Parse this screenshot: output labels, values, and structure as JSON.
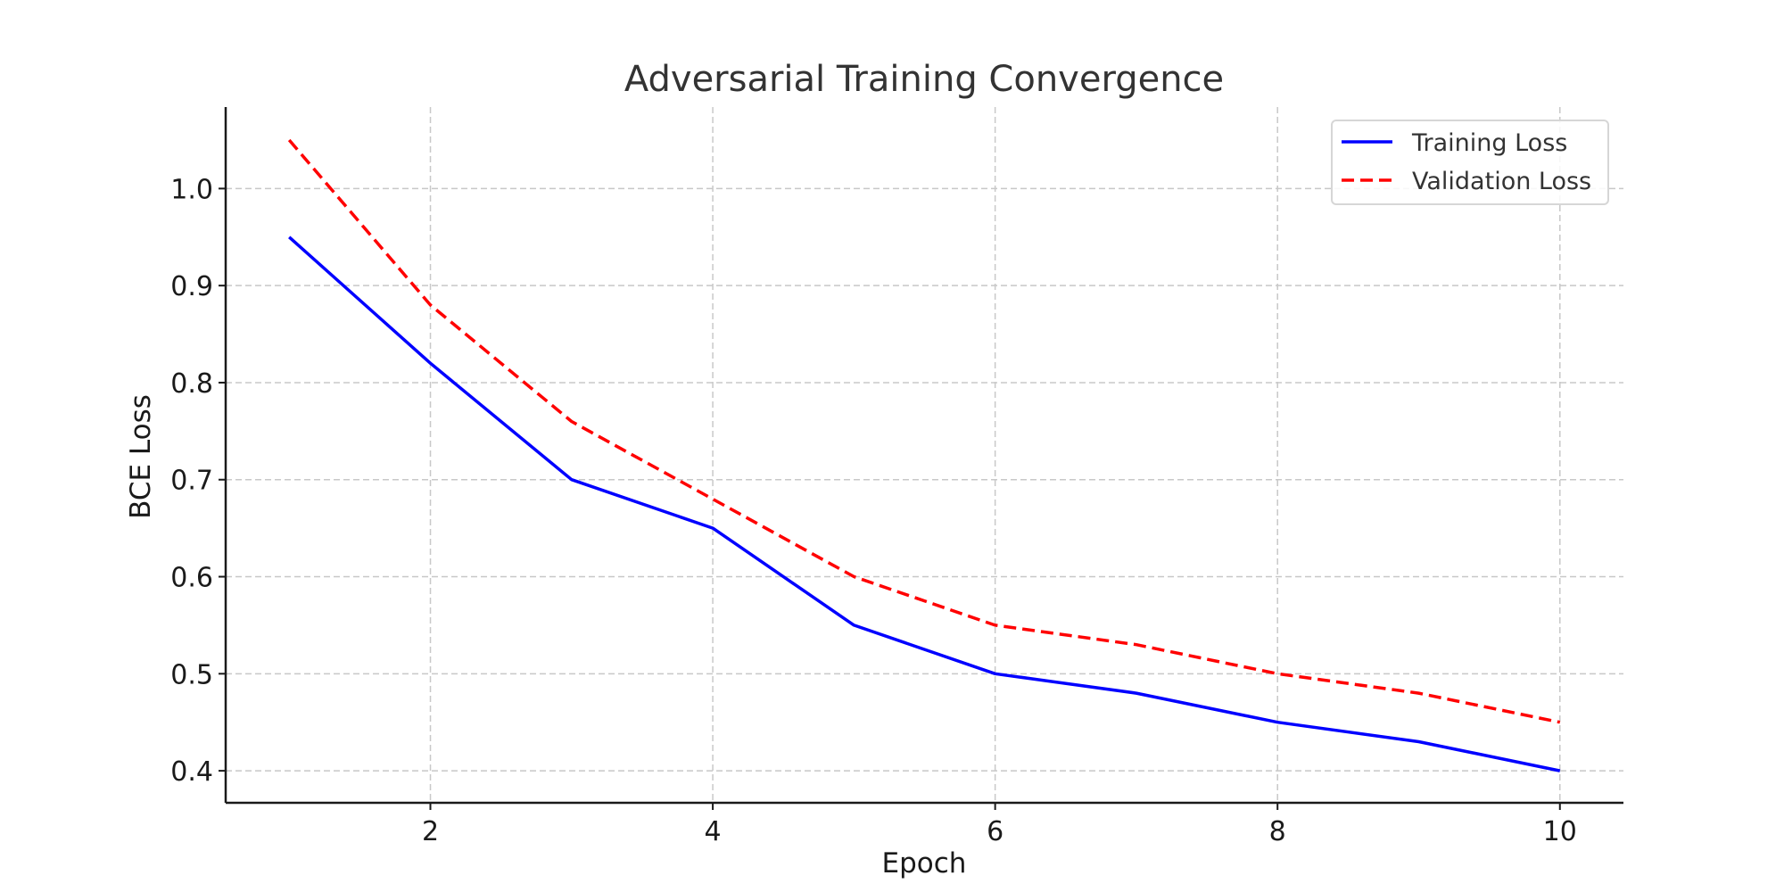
{
  "chart_data": {
    "type": "line",
    "title": "Adversarial Training Convergence",
    "xlabel": "Epoch",
    "ylabel": "BCE Loss",
    "x": [
      1,
      2,
      3,
      4,
      5,
      6,
      7,
      8,
      9,
      10
    ],
    "xlim": [
      0.55,
      10.45
    ],
    "ylim": [
      0.367,
      1.084
    ],
    "xticks": [
      2,
      4,
      6,
      8,
      10
    ],
    "xtick_labels": [
      "2",
      "4",
      "6",
      "8",
      "10"
    ],
    "yticks": [
      0.4,
      0.5,
      0.6,
      0.7,
      0.8,
      0.9,
      1.0
    ],
    "ytick_labels": [
      "0.4",
      "0.5",
      "0.6",
      "0.7",
      "0.8",
      "0.9",
      "1.0"
    ],
    "grid": true,
    "legend_position": "top-right",
    "series": [
      {
        "name": "Training Loss",
        "values": [
          0.95,
          0.82,
          0.7,
          0.65,
          0.55,
          0.5,
          0.48,
          0.45,
          0.43,
          0.4
        ],
        "color": "#0000ff",
        "style": "solid"
      },
      {
        "name": "Validation Loss",
        "values": [
          1.05,
          0.88,
          0.76,
          0.68,
          0.6,
          0.55,
          0.53,
          0.5,
          0.48,
          0.45
        ],
        "color": "#ff0000",
        "style": "dashed"
      }
    ]
  }
}
